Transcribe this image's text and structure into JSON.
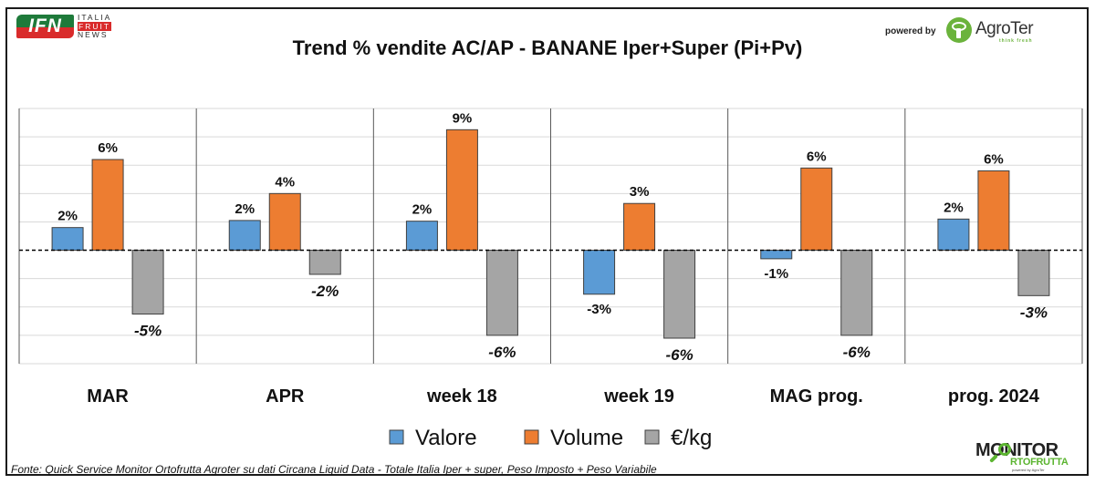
{
  "header": {
    "logo_left": {
      "text": "IFN",
      "line1": "ITALIA",
      "line2": "FRUIT",
      "line3": "NEWS"
    },
    "title": "Trend % vendite AC/AP - BANANE Iper+Super (Pi+Pv)",
    "powered_by": "powered by",
    "logo_right": {
      "name": "AgroTer",
      "tagline": "think fresh"
    }
  },
  "footer": {
    "source": "Fonte: Quick Service Monitor Ortofrutta Agroter su dati Circana Liquid Data - Totale Italia Iper + super, Peso Imposto + Peso Variabile",
    "logo": {
      "line1": "MONITOR",
      "line2": "RTOFRUTTA",
      "line3": "powered by AgroTer"
    }
  },
  "chart_data": {
    "type": "bar",
    "title": "Trend % vendite AC/AP - BANANE Iper+Super (Pi+Pv)",
    "xlabel": "",
    "ylabel": "",
    "ylim": [
      -8,
      10
    ],
    "ytick_step": 2,
    "grid": true,
    "zero_line": "dashed",
    "legend_position": "bottom",
    "categories": [
      "MAR",
      "APR",
      "week 18",
      "week 19",
      "MAG prog.",
      "prog. 2024"
    ],
    "series": [
      {
        "name": "Valore",
        "color": "#5b9bd5",
        "values": [
          1.6,
          2.1,
          2.05,
          -3.1,
          -0.6,
          2.2
        ],
        "labels": [
          "2%",
          "2%",
          "2%",
          "-3%",
          "-1%",
          "2%"
        ],
        "label_style": "bold"
      },
      {
        "name": "Volume",
        "color": "#ed7d31",
        "values": [
          6.4,
          4.0,
          8.5,
          3.3,
          5.8,
          5.6
        ],
        "labels": [
          "6%",
          "4%",
          "9%",
          "3%",
          "6%",
          "6%"
        ],
        "label_style": "bold"
      },
      {
        "name": "€/kg",
        "color": "#a5a5a5",
        "values": [
          -4.5,
          -1.7,
          -6.0,
          -6.2,
          -6.0,
          -3.2
        ],
        "labels": [
          "-5%",
          "-2%",
          "-6%",
          "-6%",
          "-6%",
          "-3%"
        ],
        "label_style": "bold-italic"
      }
    ]
  }
}
